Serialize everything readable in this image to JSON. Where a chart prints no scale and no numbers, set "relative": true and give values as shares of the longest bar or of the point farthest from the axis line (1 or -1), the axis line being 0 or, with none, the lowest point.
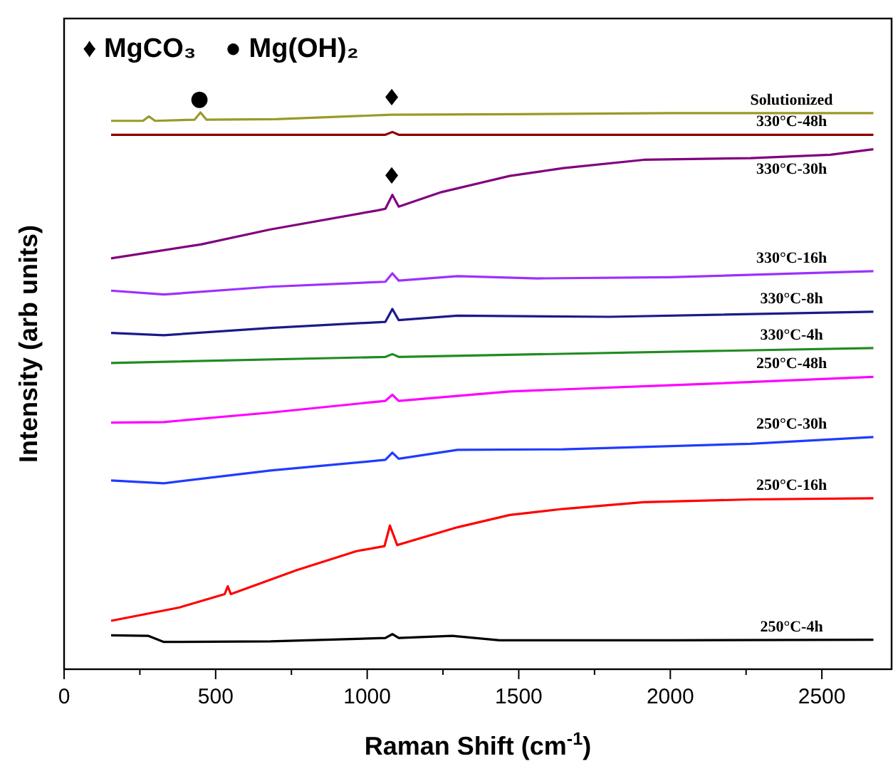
{
  "chart_data": {
    "type": "line",
    "relative": true,
    "xlabel": "Raman Shift (cm$^{-1}$)",
    "ylabel": "Intensity (arb units)",
    "xlim": [
      0,
      2730
    ],
    "xticks": [
      0,
      {
        "value": 250,
        "label": null
      },
      500,
      {
        "value": 750,
        "label": null
      },
      1000,
      {
        "value": 1250,
        "label": null
      },
      1500,
      {
        "value": 1750,
        "label": null
      },
      2000,
      {
        "value": 2250,
        "label": null
      },
      2500
    ],
    "tick_labels": "x",
    "annotations": [
      "♦ MgCO₃",
      "● Mg(OH)₂",
      "●",
      "♦",
      "♦"
    ],
    "series": [
      {
        "name": "Solutionized",
        "color": "#9a9a28",
        "x": [
          155,
          260,
          280,
          300,
          430,
          450,
          470,
          700,
          1080,
          1500,
          2000,
          2670
        ],
        "values": [
          0.985,
          0.985,
          0.993,
          0.985,
          0.987,
          1.0,
          0.987,
          0.988,
          0.996,
          0.997,
          0.999,
          0.999
        ]
      },
      {
        "name": "330°C-48h",
        "color": "#8b0000",
        "x": [
          155,
          1060,
          1083,
          1104,
          2670
        ],
        "values": [
          0.96,
          0.96,
          0.965,
          0.96,
          0.96
        ]
      },
      {
        "name": "330°C-30h",
        "color": "#800080",
        "x": [
          155,
          451,
          681,
          1033,
          1060,
          1083,
          1104,
          1245,
          1470,
          1647,
          1912,
          2265,
          2528,
          2670
        ],
        "values": [
          0.738,
          0.763,
          0.79,
          0.824,
          0.827,
          0.852,
          0.831,
          0.857,
          0.886,
          0.9,
          0.915,
          0.918,
          0.924,
          0.934
        ]
      },
      {
        "name": "330°C-16h",
        "color": "#9b30ff",
        "x": [
          155,
          329,
          681,
          1060,
          1083,
          1104,
          1298,
          1562,
          2000,
          2670
        ],
        "values": [
          0.68,
          0.673,
          0.687,
          0.696,
          0.711,
          0.698,
          0.706,
          0.702,
          0.704,
          0.715
        ]
      },
      {
        "name": "330°C-8h",
        "color": "#1a1a8c",
        "x": [
          155,
          329,
          681,
          1060,
          1083,
          1104,
          1298,
          1800,
          2670
        ],
        "values": [
          0.604,
          0.6,
          0.613,
          0.624,
          0.647,
          0.627,
          0.635,
          0.633,
          0.642
        ]
      },
      {
        "name": "330°C-4h",
        "color": "#228b22",
        "x": [
          155,
          1060,
          1083,
          1104,
          2670
        ],
        "values": [
          0.55,
          0.561,
          0.566,
          0.561,
          0.577
        ]
      },
      {
        "name": "250°C-48h",
        "color": "#ff00ff",
        "x": [
          155,
          329,
          681,
          1060,
          1083,
          1104,
          1470,
          2000,
          2670
        ],
        "values": [
          0.443,
          0.444,
          0.461,
          0.482,
          0.493,
          0.482,
          0.499,
          0.51,
          0.525
        ]
      },
      {
        "name": "250°C-30h",
        "color": "#1f3cff",
        "x": [
          155,
          329,
          681,
          1060,
          1083,
          1104,
          1298,
          1647,
          2265,
          2670
        ],
        "values": [
          0.339,
          0.334,
          0.357,
          0.376,
          0.389,
          0.378,
          0.394,
          0.395,
          0.405,
          0.417
        ]
      },
      {
        "name": "250°C-16h",
        "color": "#ff0000",
        "x": [
          155,
          381,
          530,
          540,
          550,
          768,
          964,
          1057,
          1075,
          1099,
          1298,
          1470,
          1647,
          1912,
          2265,
          2670
        ],
        "values": [
          0.087,
          0.111,
          0.135,
          0.149,
          0.135,
          0.178,
          0.212,
          0.221,
          0.258,
          0.223,
          0.255,
          0.277,
          0.288,
          0.3,
          0.305,
          0.307
        ]
      },
      {
        "name": "250°C-4h",
        "color": "#000000",
        "x": [
          155,
          277,
          329,
          681,
          1060,
          1083,
          1104,
          1280,
          1437,
          2000,
          2670
        ],
        "values": [
          0.061,
          0.06,
          0.049,
          0.05,
          0.056,
          0.063,
          0.056,
          0.06,
          0.052,
          0.052,
          0.053
        ]
      }
    ]
  }
}
